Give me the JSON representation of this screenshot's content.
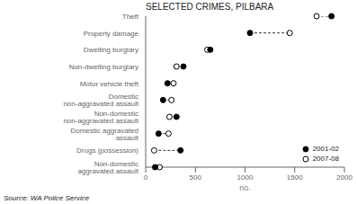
{
  "chart_data": {
    "type": "dumbbell",
    "title": "SELECTED CRIMES, PILBARA",
    "orientation": "horizontal",
    "categories": [
      "Theft",
      "Property damage",
      "Dwelling burglary",
      "Non-dwelling burglary",
      "Motor vehicle theft",
      "Domestic non-aggravated assault",
      "Non-domestic non-aggravated assault",
      "Domestic aggravated assault",
      "Drugs (possession)",
      "Non-domestic aggravated assault"
    ],
    "series": [
      {
        "name": "2001-02",
        "color": "#000000",
        "marker": "filled",
        "values": [
          1870,
          1050,
          650,
          380,
          220,
          175,
          310,
          130,
          350,
          95
        ]
      },
      {
        "name": "2007-08",
        "color": "#000000",
        "marker": "open",
        "values": [
          1720,
          1450,
          620,
          310,
          280,
          260,
          240,
          230,
          85,
          140
        ]
      }
    ],
    "line_style": "dashed",
    "xlabel": "no.",
    "xlim": [
      0,
      2000
    ],
    "xticks": [
      0,
      500,
      1000,
      1500,
      2000
    ],
    "legend": "lower right",
    "grid": false,
    "source": "Source: WA Police Service"
  }
}
